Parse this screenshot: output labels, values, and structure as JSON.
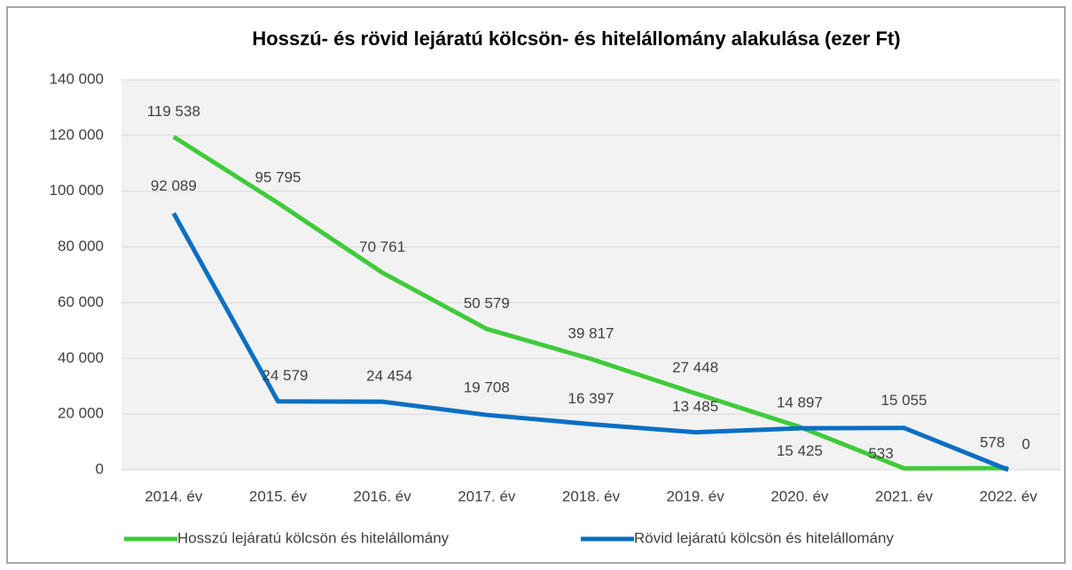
{
  "chart_data": {
    "type": "line",
    "title": "Hosszú- és rövid lejáratú kölcsön- és hitelállomány alakulása (ezer Ft)",
    "categories": [
      "2014. év",
      "2015. év",
      "2016. év",
      "2017. év",
      "2018. év",
      "2019. év",
      "2020. év",
      "2021. év",
      "2022. év"
    ],
    "series": [
      {
        "name": "Hosszú lejáratú kölcsön és hitelállomány",
        "color": "#3fcb3a",
        "values": [
          119538,
          95795,
          70761,
          50579,
          39817,
          27448,
          15425,
          533,
          578
        ],
        "value_labels": [
          "119 538",
          "95 795",
          "70 761",
          "50 579",
          "39 817",
          "27 448",
          "15 425",
          "533",
          "578"
        ]
      },
      {
        "name": "Rövid lejáratú kölcsön és hitelállomány",
        "color": "#0a6fc2",
        "values": [
          92089,
          24579,
          24454,
          19708,
          16397,
          13485,
          14897,
          15055,
          0
        ],
        "value_labels": [
          "92 089",
          "24 579",
          "24 454",
          "19 708",
          "16 397",
          "13 485",
          "14 897",
          "15 055",
          "0"
        ]
      }
    ],
    "ylim": [
      0,
      140000
    ],
    "yticks": [
      0,
      {
        "value": 20000,
        "label": "20 000"
      },
      {
        "value": 40000,
        "label": "40 000"
      },
      {
        "value": 60000,
        "label": "60 000"
      },
      {
        "value": 80000,
        "label": "80 000"
      },
      {
        "value": 100000,
        "label": "100 000"
      },
      {
        "value": 120000,
        "label": "120 000"
      },
      {
        "value": 140000,
        "label": "140 000"
      }
    ],
    "grid": true,
    "legend": "bottom"
  }
}
